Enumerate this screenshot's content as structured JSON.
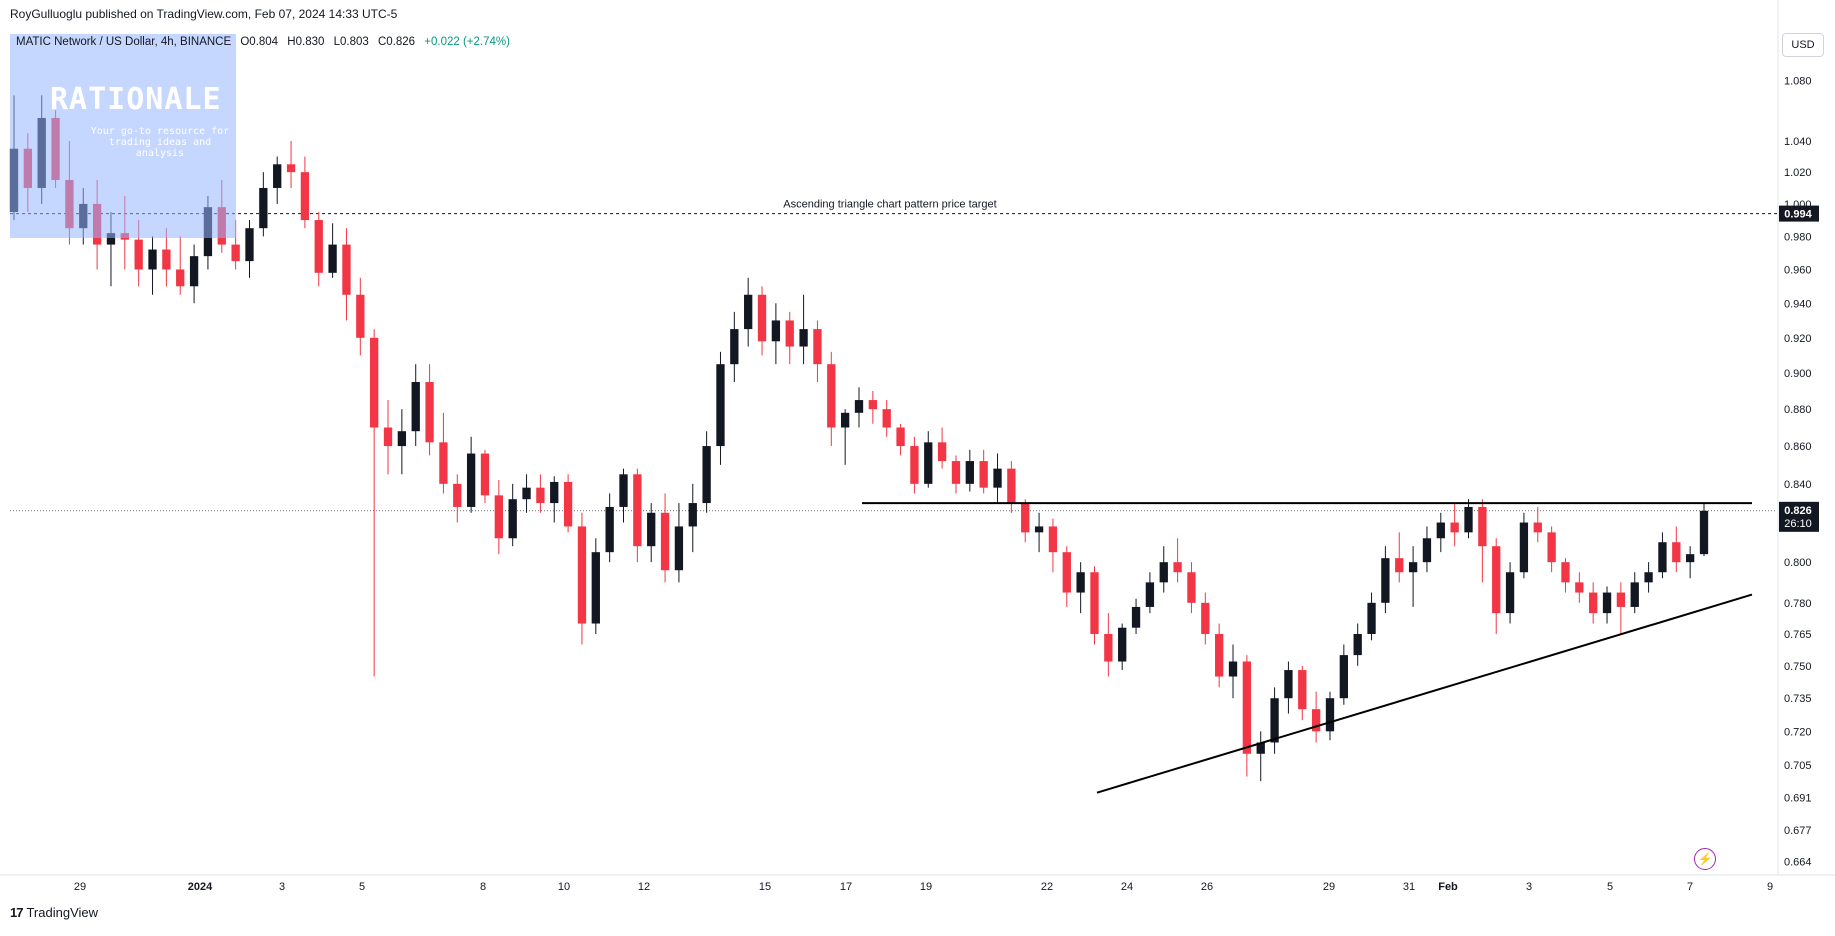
{
  "header": {
    "publisher": "RoyGulluoglu published on TradingView.com, Feb 07, 2024 14:33 UTC-5",
    "symbol": "MATIC Network / US Dollar, 4h, BINANCE",
    "open": "O0.804",
    "high": "H0.830",
    "low": "L0.803",
    "close": "C0.826",
    "change": "+0.022 (+2.74%)"
  },
  "currency_button": "USD",
  "logo": {
    "title": "RATIONALE",
    "subtitle": "Your go-to resource for trading ideas and analysis"
  },
  "footer": {
    "brand": "TradingView",
    "logo_mark": "17"
  },
  "colors": {
    "up": "#089981",
    "down": "#f23645",
    "candle_up_body": "#131722",
    "candle_down_body": "#f23645",
    "accent": "#9c27b0"
  },
  "chart_data": {
    "type": "candlestick",
    "symbol": "MATIC Network / US Dollar",
    "interval": "4h",
    "exchange": "BINANCE",
    "y_axis": {
      "scale": "log",
      "ticks": [
        "1.080",
        "1.040",
        "1.020",
        "1.000",
        "0.980",
        "0.960",
        "0.940",
        "0.920",
        "0.900",
        "0.880",
        "0.860",
        "0.840",
        "0.820",
        "0.800",
        "0.780",
        "0.765",
        "0.750",
        "0.735",
        "0.720",
        "0.705",
        "0.691",
        "0.677",
        "0.664"
      ],
      "range": [
        0.66,
        1.12
      ]
    },
    "x_axis": {
      "ticks": [
        "29",
        "2024",
        "3",
        "5",
        "8",
        "10",
        "12",
        "15",
        "17",
        "19",
        "22",
        "24",
        "26",
        "29",
        "31",
        "Feb",
        "3",
        "5",
        "7",
        "9"
      ]
    },
    "price_labels": {
      "target": "0.994",
      "current": "0.826",
      "countdown": "26:10"
    },
    "annotations": [
      {
        "text": "Ascending triangle chart pattern price target",
        "price": 0.994
      }
    ],
    "resistance_line": {
      "price": 0.83,
      "from": "Jan 17",
      "to": "Feb 8"
    },
    "support_line": {
      "from_price": 0.693,
      "from": "Jan 23",
      "to_price": 0.784,
      "to": "Feb 8"
    },
    "ohlc": [
      [
        0.995,
        1.07,
        0.99,
        1.035
      ],
      [
        1.035,
        1.045,
        0.995,
        1.01
      ],
      [
        1.01,
        1.07,
        1.0,
        1.055
      ],
      [
        1.055,
        1.06,
        1.01,
        1.015
      ],
      [
        1.015,
        1.04,
        0.975,
        0.985
      ],
      [
        0.985,
        1.01,
        0.975,
        1.0
      ],
      [
        1.0,
        1.015,
        0.96,
        0.975
      ],
      [
        0.975,
        0.995,
        0.95,
        0.982
      ],
      [
        0.982,
        1.005,
        0.96,
        0.978
      ],
      [
        0.978,
        0.99,
        0.95,
        0.96
      ],
      [
        0.96,
        0.98,
        0.945,
        0.972
      ],
      [
        0.972,
        0.985,
        0.95,
        0.96
      ],
      [
        0.96,
        0.98,
        0.945,
        0.95
      ],
      [
        0.95,
        0.975,
        0.94,
        0.968
      ],
      [
        0.968,
        1.005,
        0.96,
        0.998
      ],
      [
        0.998,
        1.015,
        0.97,
        0.975
      ],
      [
        0.975,
        0.99,
        0.96,
        0.965
      ],
      [
        0.965,
        0.99,
        0.955,
        0.985
      ],
      [
        0.985,
        1.02,
        0.98,
        1.01
      ],
      [
        1.01,
        1.03,
        1.0,
        1.025
      ],
      [
        1.025,
        1.04,
        1.01,
        1.02
      ],
      [
        1.02,
        1.03,
        0.985,
        0.99
      ],
      [
        0.99,
        0.995,
        0.95,
        0.958
      ],
      [
        0.958,
        0.988,
        0.955,
        0.975
      ],
      [
        0.975,
        0.985,
        0.93,
        0.945
      ],
      [
        0.945,
        0.955,
        0.91,
        0.92
      ],
      [
        0.92,
        0.925,
        0.745,
        0.87
      ],
      [
        0.87,
        0.885,
        0.845,
        0.86
      ],
      [
        0.86,
        0.88,
        0.845,
        0.868
      ],
      [
        0.868,
        0.905,
        0.86,
        0.895
      ],
      [
        0.895,
        0.905,
        0.855,
        0.862
      ],
      [
        0.862,
        0.878,
        0.835,
        0.84
      ],
      [
        0.84,
        0.845,
        0.82,
        0.828
      ],
      [
        0.828,
        0.865,
        0.825,
        0.856
      ],
      [
        0.856,
        0.858,
        0.83,
        0.834
      ],
      [
        0.834,
        0.842,
        0.804,
        0.812
      ],
      [
        0.812,
        0.84,
        0.808,
        0.832
      ],
      [
        0.832,
        0.845,
        0.825,
        0.838
      ],
      [
        0.838,
        0.845,
        0.825,
        0.83
      ],
      [
        0.83,
        0.844,
        0.82,
        0.841
      ],
      [
        0.841,
        0.845,
        0.815,
        0.818
      ],
      [
        0.818,
        0.825,
        0.76,
        0.77
      ],
      [
        0.77,
        0.812,
        0.765,
        0.805
      ],
      [
        0.805,
        0.835,
        0.8,
        0.828
      ],
      [
        0.828,
        0.848,
        0.82,
        0.845
      ],
      [
        0.845,
        0.848,
        0.8,
        0.808
      ],
      [
        0.808,
        0.83,
        0.8,
        0.825
      ],
      [
        0.825,
        0.835,
        0.79,
        0.796
      ],
      [
        0.796,
        0.83,
        0.79,
        0.818
      ],
      [
        0.818,
        0.84,
        0.805,
        0.83
      ],
      [
        0.83,
        0.868,
        0.825,
        0.86
      ],
      [
        0.86,
        0.912,
        0.85,
        0.905
      ],
      [
        0.905,
        0.935,
        0.895,
        0.925
      ],
      [
        0.925,
        0.955,
        0.915,
        0.945
      ],
      [
        0.945,
        0.95,
        0.91,
        0.918
      ],
      [
        0.918,
        0.94,
        0.905,
        0.93
      ],
      [
        0.93,
        0.935,
        0.905,
        0.915
      ],
      [
        0.915,
        0.945,
        0.905,
        0.925
      ],
      [
        0.925,
        0.93,
        0.895,
        0.905
      ],
      [
        0.905,
        0.912,
        0.86,
        0.87
      ],
      [
        0.87,
        0.88,
        0.85,
        0.878
      ],
      [
        0.878,
        0.892,
        0.87,
        0.885
      ],
      [
        0.885,
        0.89,
        0.872,
        0.88
      ],
      [
        0.88,
        0.885,
        0.865,
        0.87
      ],
      [
        0.87,
        0.872,
        0.855,
        0.86
      ],
      [
        0.86,
        0.865,
        0.835,
        0.84
      ],
      [
        0.84,
        0.868,
        0.838,
        0.862
      ],
      [
        0.862,
        0.87,
        0.848,
        0.852
      ],
      [
        0.852,
        0.855,
        0.835,
        0.84
      ],
      [
        0.84,
        0.858,
        0.836,
        0.852
      ],
      [
        0.852,
        0.858,
        0.835,
        0.838
      ],
      [
        0.838,
        0.856,
        0.83,
        0.848
      ],
      [
        0.848,
        0.852,
        0.825,
        0.83
      ],
      [
        0.83,
        0.832,
        0.81,
        0.815
      ],
      [
        0.815,
        0.825,
        0.805,
        0.818
      ],
      [
        0.818,
        0.822,
        0.795,
        0.805
      ],
      [
        0.805,
        0.808,
        0.778,
        0.785
      ],
      [
        0.785,
        0.8,
        0.775,
        0.795
      ],
      [
        0.795,
        0.798,
        0.76,
        0.765
      ],
      [
        0.765,
        0.775,
        0.745,
        0.752
      ],
      [
        0.752,
        0.77,
        0.748,
        0.768
      ],
      [
        0.768,
        0.782,
        0.765,
        0.778
      ],
      [
        0.778,
        0.795,
        0.775,
        0.79
      ],
      [
        0.79,
        0.808,
        0.785,
        0.8
      ],
      [
        0.8,
        0.812,
        0.79,
        0.795
      ],
      [
        0.795,
        0.8,
        0.775,
        0.78
      ],
      [
        0.78,
        0.785,
        0.76,
        0.765
      ],
      [
        0.765,
        0.77,
        0.74,
        0.745
      ],
      [
        0.745,
        0.76,
        0.735,
        0.752
      ],
      [
        0.752,
        0.755,
        0.7,
        0.71
      ],
      [
        0.71,
        0.72,
        0.698,
        0.715
      ],
      [
        0.715,
        0.74,
        0.71,
        0.735
      ],
      [
        0.735,
        0.752,
        0.728,
        0.748
      ],
      [
        0.748,
        0.75,
        0.725,
        0.73
      ],
      [
        0.73,
        0.738,
        0.715,
        0.72
      ],
      [
        0.72,
        0.738,
        0.716,
        0.735
      ],
      [
        0.735,
        0.76,
        0.732,
        0.755
      ],
      [
        0.755,
        0.77,
        0.75,
        0.765
      ],
      [
        0.765,
        0.785,
        0.762,
        0.78
      ],
      [
        0.78,
        0.808,
        0.775,
        0.802
      ],
      [
        0.802,
        0.815,
        0.79,
        0.795
      ],
      [
        0.795,
        0.808,
        0.778,
        0.8
      ],
      [
        0.8,
        0.818,
        0.795,
        0.812
      ],
      [
        0.812,
        0.825,
        0.805,
        0.82
      ],
      [
        0.82,
        0.83,
        0.808,
        0.815
      ],
      [
        0.815,
        0.832,
        0.812,
        0.828
      ],
      [
        0.828,
        0.832,
        0.79,
        0.808
      ],
      [
        0.808,
        0.812,
        0.765,
        0.775
      ],
      [
        0.775,
        0.8,
        0.77,
        0.795
      ],
      [
        0.795,
        0.825,
        0.792,
        0.82
      ],
      [
        0.82,
        0.828,
        0.81,
        0.815
      ],
      [
        0.815,
        0.818,
        0.795,
        0.8
      ],
      [
        0.8,
        0.802,
        0.785,
        0.79
      ],
      [
        0.79,
        0.795,
        0.78,
        0.785
      ],
      [
        0.785,
        0.79,
        0.77,
        0.775
      ],
      [
        0.775,
        0.788,
        0.77,
        0.785
      ],
      [
        0.785,
        0.79,
        0.765,
        0.778
      ],
      [
        0.778,
        0.795,
        0.775,
        0.79
      ],
      [
        0.79,
        0.8,
        0.785,
        0.795
      ],
      [
        0.795,
        0.815,
        0.792,
        0.81
      ],
      [
        0.81,
        0.818,
        0.795,
        0.8
      ],
      [
        0.8,
        0.808,
        0.792,
        0.804
      ],
      [
        0.804,
        0.83,
        0.803,
        0.826
      ]
    ]
  }
}
